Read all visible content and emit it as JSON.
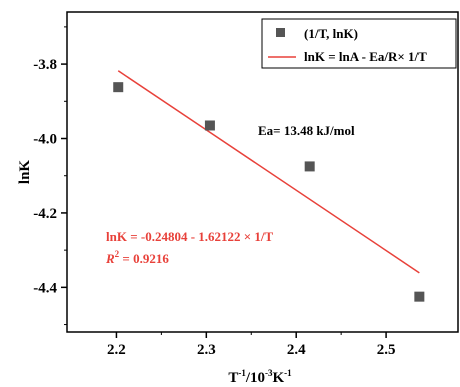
{
  "chart_data": {
    "type": "scatter",
    "x_tick_labels": [
      "2.2",
      "2.3",
      "2.4",
      "2.5"
    ],
    "y_tick_labels": [
      "-3.8",
      "-4.0",
      "-4.2",
      "-4.4"
    ],
    "xlim": [
      2.145,
      2.58
    ],
    "ylim": [
      -4.52,
      -3.66
    ],
    "x_ticks": [
      2.2,
      2.3,
      2.4,
      2.5
    ],
    "y_ticks": [
      -3.8,
      -4.0,
      -4.2,
      -4.4
    ],
    "xlabel": {
      "base": "T",
      "exp1": "-1",
      "mid": "/10",
      "exp2": "-3",
      "tail": "K",
      "exp3": "-1"
    },
    "ylabel": "lnK",
    "grid": false,
    "legend_position": "top-right",
    "series": [
      {
        "name": "(1/T, lnK)",
        "kind": "scatter",
        "marker": "square",
        "color": "#555555",
        "x": [
          2.202,
          2.304,
          2.415,
          2.537
        ],
        "y": [
          -3.862,
          -3.965,
          -4.075,
          -4.425
        ]
      },
      {
        "name": "lnK = lnA - Ea/R× 1/T",
        "kind": "line",
        "color": "#e8413a",
        "x": [
          2.202,
          2.537
        ],
        "y": [
          -3.818,
          -4.361
        ]
      }
    ],
    "annotations": {
      "ea": "Ea= 13.48 kJ/mol",
      "equation": "lnK = -0.24804 - 1.62122 × 1/T",
      "r2_symbol": "R",
      "r2_exp": "2",
      "r2_value": " = 0.9216"
    }
  },
  "colors": {
    "fit_annotation": "#e8413a",
    "axis": "#000000"
  }
}
